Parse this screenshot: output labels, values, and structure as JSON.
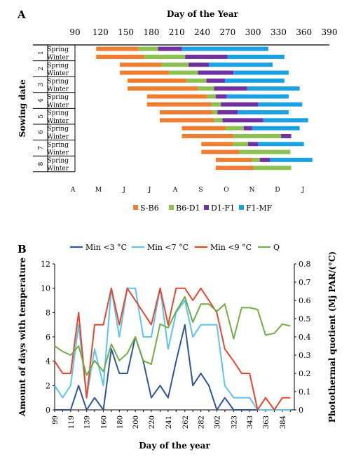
{
  "panels": {
    "a": "A",
    "b": "B"
  },
  "chart_data": [
    {
      "type": "bar",
      "stacked": true,
      "orientation": "horizontal",
      "title": "Day of the Year",
      "ylabel": "Sowing date",
      "xlim": [
        90,
        390
      ],
      "xticks": [
        90,
        120,
        150,
        180,
        210,
        240,
        270,
        300,
        330,
        360,
        390
      ],
      "month_labels": [
        "A",
        "M",
        "J",
        "J",
        "A",
        "S",
        "O",
        "N",
        "D",
        "J"
      ],
      "groups": [
        "1",
        "2",
        "3",
        "4",
        "5",
        "6",
        "7",
        "8"
      ],
      "season_labels": [
        "Spring",
        "Winter"
      ],
      "legend_position": "bottom",
      "series": [
        {
          "name": "S-B6",
          "color": "#ED7D31"
        },
        {
          "name": "B6-D1",
          "color": "#8CC152"
        },
        {
          "name": "D1-F1",
          "color": "#7030A0"
        },
        {
          "name": "F1-MF",
          "color": "#1BA1E2"
        }
      ],
      "rows": [
        {
          "group": "1",
          "season": "Spring",
          "phases": [
            115,
            165,
            188,
            216,
            318
          ]
        },
        {
          "group": "1",
          "season": "Winter",
          "phases": [
            115,
            172,
            220,
            270,
            337
          ]
        },
        {
          "group": "2",
          "season": "Spring",
          "phases": [
            143,
            192,
            224,
            248,
            323
          ]
        },
        {
          "group": "2",
          "season": "Winter",
          "phases": [
            143,
            201,
            235,
            277,
            342
          ]
        },
        {
          "group": "3",
          "season": "Spring",
          "phases": [
            152,
            221,
            245,
            267,
            337
          ]
        },
        {
          "group": "3",
          "season": "Winter",
          "phases": [
            152,
            235,
            254,
            293,
            355
          ]
        },
        {
          "group": "4",
          "season": "Spring",
          "phases": [
            175,
            246,
            256,
            269,
            342
          ]
        },
        {
          "group": "4",
          "season": "Winter",
          "phases": [
            175,
            251,
            262,
            306,
            358
          ]
        },
        {
          "group": "5",
          "season": "Spring",
          "phases": [
            190,
            252,
            258,
            282,
            342
          ]
        },
        {
          "group": "5",
          "season": "Winter",
          "phases": [
            190,
            254,
            264,
            312,
            365
          ]
        },
        {
          "group": "6",
          "season": "Spring",
          "phases": [
            216,
            268,
            289,
            299,
            355
          ]
        },
        {
          "group": "6",
          "season": "Winter",
          "phases": [
            216,
            277,
            333,
            345,
            ""
          ]
        },
        {
          "group": "7",
          "season": "Spring",
          "phases": [
            239,
            276,
            294,
            306,
            360
          ]
        },
        {
          "group": "7",
          "season": "Winter",
          "phases": [
            239,
            284,
            344,
            "",
            ""
          ]
        },
        {
          "group": "8",
          "season": "Spring",
          "phases": [
            256,
            299,
            308,
            320,
            370
          ]
        },
        {
          "group": "8",
          "season": "Winter",
          "phases": [
            256,
            301,
            345,
            "",
            ""
          ]
        }
      ]
    },
    {
      "type": "line",
      "xlabel": "Day of the year",
      "ylabel": "Amount of days with temperature",
      "y2label": "Photothermal quotient (Mj PAR/(°C)",
      "ylim": [
        0,
        12
      ],
      "y2lim": [
        0,
        0.8
      ],
      "yticks": [
        0,
        2,
        4,
        6,
        8,
        10,
        12
      ],
      "y2ticks": [
        "0",
        "0.1",
        "0.2",
        "0.3",
        "0.4",
        "0.5",
        "0.6",
        "0.7",
        "0.8"
      ],
      "x": [
        99,
        109,
        119,
        129,
        139,
        149,
        160,
        170,
        180,
        190,
        200,
        210,
        220,
        231,
        241,
        251,
        262,
        272,
        282,
        292,
        302,
        312,
        323,
        333,
        343,
        353,
        363,
        374,
        384,
        394
      ],
      "xtick_labels": [
        "99",
        "119",
        "139",
        "160",
        "180",
        "200",
        "220",
        "241",
        "262",
        "282",
        "302",
        "323",
        "343",
        "363",
        "384"
      ],
      "legend_position": "top",
      "series": [
        {
          "name": "Min <3 °C",
          "axis": "left",
          "color": "#2F5597",
          "values": [
            0,
            0,
            0,
            2,
            0,
            1,
            0,
            5,
            3,
            3,
            6,
            4,
            1,
            2,
            1,
            4,
            7,
            2,
            3,
            2,
            0,
            1,
            0,
            0,
            0,
            0,
            0,
            0,
            0,
            0
          ]
        },
        {
          "name": "Min <7 °C",
          "axis": "left",
          "color": "#5BC4F0",
          "values": [
            2,
            1,
            2,
            7,
            1,
            5,
            2,
            10,
            6,
            10,
            10,
            6,
            6,
            10,
            5,
            8,
            9,
            6,
            7,
            7,
            7,
            2,
            1,
            1,
            1,
            0,
            0,
            0,
            0,
            0
          ]
        },
        {
          "name": "Min <9 °C",
          "axis": "left",
          "color": "#E8452C",
          "values": [
            4,
            3,
            3,
            8,
            1,
            7,
            7,
            10,
            7,
            10,
            9,
            8,
            7,
            10,
            7,
            10,
            10,
            9,
            10,
            9,
            8,
            5,
            4,
            3,
            3,
            0,
            1,
            0,
            1,
            1
          ]
        },
        {
          "name": "Q",
          "axis": "right",
          "color": "#70AD47",
          "values": [
            0.35,
            0.32,
            0.3,
            0.35,
            0.19,
            0.27,
            0.21,
            0.36,
            0.27,
            0.31,
            0.4,
            0.27,
            0.25,
            0.47,
            0.45,
            0.54,
            0.62,
            0.48,
            0.58,
            0.58,
            0.54,
            0.58,
            0.39,
            0.56,
            0.56,
            0.55,
            0.41,
            0.42,
            0.47,
            0.46
          ]
        }
      ]
    }
  ]
}
